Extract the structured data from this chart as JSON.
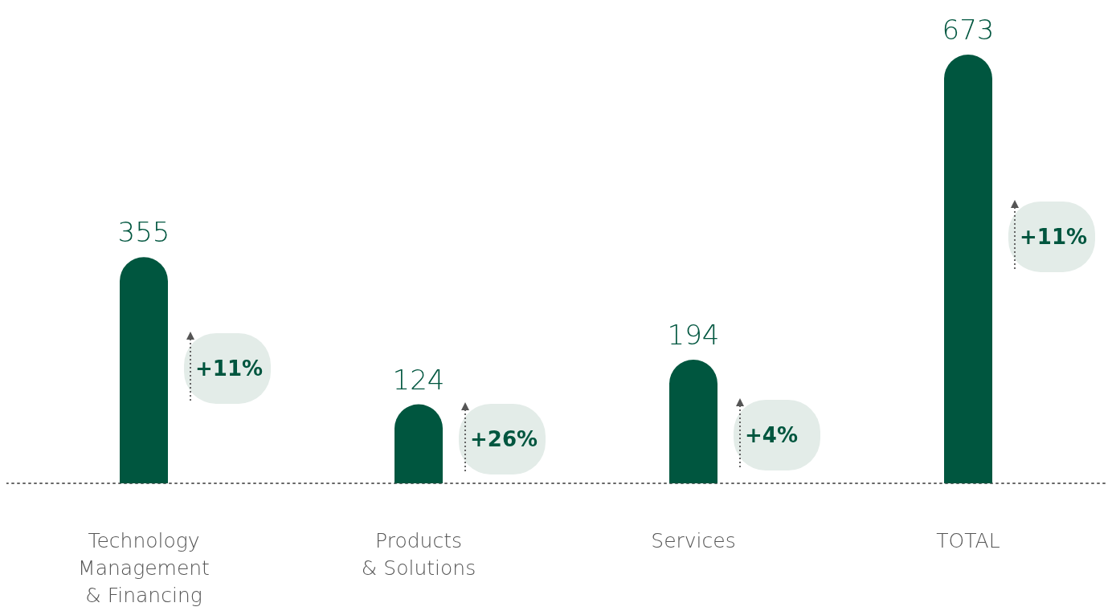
{
  "chart_data": {
    "type": "bar",
    "categories": [
      "Technology\nManagement\n& Financing",
      "Products\n& Solutions",
      "Services",
      "TOTAL"
    ],
    "values": [
      355,
      124,
      194,
      673
    ],
    "color": "#00563f",
    "data_labels": true,
    "annotations": [
      "+11%",
      "+26%",
      "+4%",
      "+11%"
    ]
  }
}
